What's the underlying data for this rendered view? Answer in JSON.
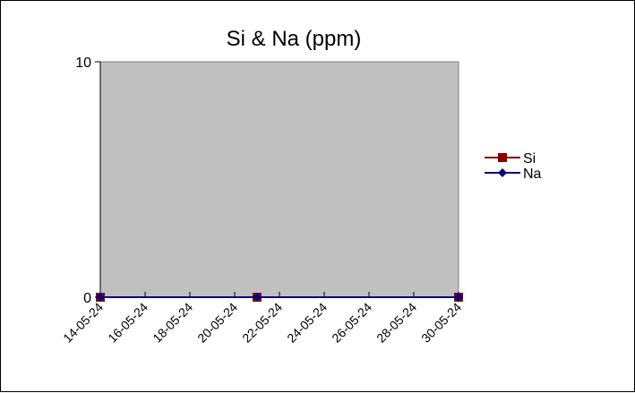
{
  "chart_data": {
    "type": "line",
    "title": "Si & Na (ppm)",
    "xlabel": "",
    "ylabel": "",
    "ylim": [
      0,
      10
    ],
    "y_ticks": [
      "0",
      "10"
    ],
    "x_tick_labels": [
      "14-05-24",
      "16-05-24",
      "18-05-24",
      "20-05-24",
      "22-05-24",
      "24-05-24",
      "26-05-24",
      "28-05-24",
      "30-05-24"
    ],
    "x_range": [
      "14-05-24",
      "30-05-24"
    ],
    "x": [
      "14-05-24",
      "21-05-24",
      "30-05-24"
    ],
    "series": [
      {
        "name": "Si",
        "values": [
          0,
          0,
          0
        ],
        "color": "#8b0000",
        "marker": "square"
      },
      {
        "name": "Na",
        "values": [
          0,
          0,
          0
        ],
        "color": "#000080",
        "marker": "diamond"
      }
    ],
    "legend_position": "right",
    "plot_background": "#c0c0c0",
    "grid": false
  }
}
